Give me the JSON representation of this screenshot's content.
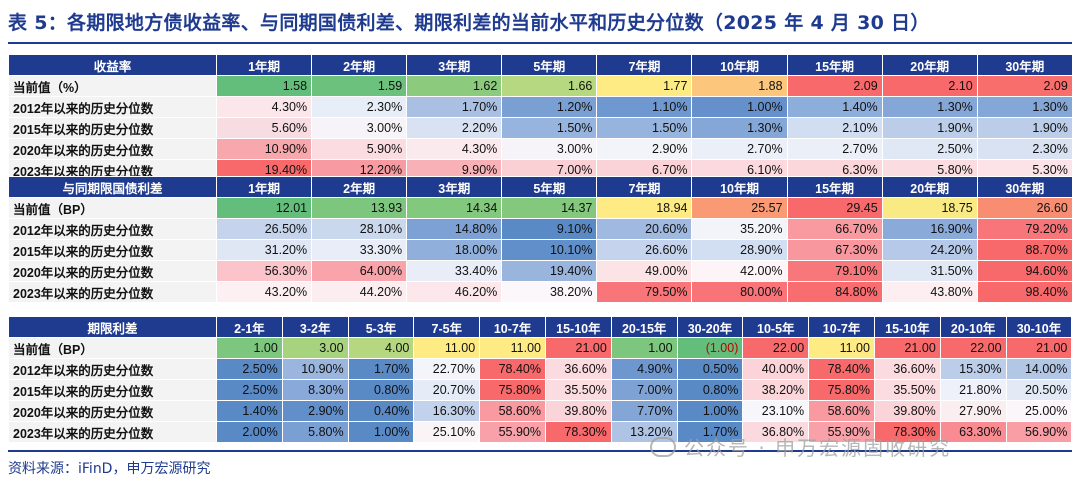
{
  "title": "表 5：各期限地方债收益率、与同期国债利差、期限利差的当前水平和历史分位数（2025 年 4 月 30 日）",
  "source": "资料来源：iFinD，申万宏源研究",
  "watermark": "公众号 · 申万宏源固收研究",
  "colors": {
    "header": "#1f3b8f",
    "label_bg": "#f3f3f3",
    "high": "#f8696b",
    "mid": "#ffeb84",
    "low": "#5a8ac6"
  },
  "table1": {
    "header": [
      "收益率",
      "1年期",
      "2年期",
      "3年期",
      "5年期",
      "7年期",
      "10年期",
      "15年期",
      "20年期",
      "30年期"
    ],
    "rows": [
      {
        "label": "当前值（%）",
        "cells": [
          {
            "t": "1.58",
            "bg": "#63be7b"
          },
          {
            "t": "1.59",
            "bg": "#6cc17c"
          },
          {
            "t": "1.62",
            "bg": "#8ccb7e"
          },
          {
            "t": "1.66",
            "bg": "#b6d880"
          },
          {
            "t": "1.77",
            "bg": "#ffeb84"
          },
          {
            "t": "1.88",
            "bg": "#fcc77d"
          },
          {
            "t": "2.09",
            "bg": "#f8696b"
          },
          {
            "t": "2.10",
            "bg": "#f8696b"
          },
          {
            "t": "2.09",
            "bg": "#f86e6c"
          }
        ]
      },
      {
        "label": "2012年以来的历史分位数",
        "cells": [
          {
            "t": "4.30%",
            "bg": "#fbe7ea"
          },
          {
            "t": "2.30%",
            "bg": "#e8eef8"
          },
          {
            "t": "1.70%",
            "bg": "#a9c0e3"
          },
          {
            "t": "1.20%",
            "bg": "#7a9fd3"
          },
          {
            "t": "1.10%",
            "bg": "#6f98d0"
          },
          {
            "t": "1.00%",
            "bg": "#6690cc"
          },
          {
            "t": "1.40%",
            "bg": "#8dadda"
          },
          {
            "t": "1.30%",
            "bg": "#84a7d7"
          },
          {
            "t": "1.30%",
            "bg": "#84a7d7"
          }
        ]
      },
      {
        "label": "2015年以来的历史分位数",
        "cells": [
          {
            "t": "5.60%",
            "bg": "#f7dde2"
          },
          {
            "t": "3.00%",
            "bg": "#f6f4f8"
          },
          {
            "t": "2.20%",
            "bg": "#d8e2f2"
          },
          {
            "t": "1.50%",
            "bg": "#96b4dd"
          },
          {
            "t": "1.50%",
            "bg": "#96b4dd"
          },
          {
            "t": "1.30%",
            "bg": "#84a7d7"
          },
          {
            "t": "2.10%",
            "bg": "#d1ddf0"
          },
          {
            "t": "1.90%",
            "bg": "#bccde9"
          },
          {
            "t": "1.90%",
            "bg": "#bccde9"
          }
        ]
      },
      {
        "label": "2020年以来的历史分位数",
        "cells": [
          {
            "t": "10.90%",
            "bg": "#f8a7ad"
          },
          {
            "t": "5.90%",
            "bg": "#fbdde1"
          },
          {
            "t": "4.30%",
            "bg": "#fbeaed"
          },
          {
            "t": "3.00%",
            "bg": "#f6f4f8"
          },
          {
            "t": "2.90%",
            "bg": "#f3f4f9"
          },
          {
            "t": "2.70%",
            "bg": "#ebeff8"
          },
          {
            "t": "2.70%",
            "bg": "#ebeff8"
          },
          {
            "t": "2.50%",
            "bg": "#e1e8f5"
          },
          {
            "t": "2.30%",
            "bg": "#d8e2f2"
          }
        ]
      },
      {
        "label": "2023年以来的历史分位数",
        "cells": [
          {
            "t": "19.40%",
            "bg": "#f8696b"
          },
          {
            "t": "12.20%",
            "bg": "#f89aa1"
          },
          {
            "t": "9.90%",
            "bg": "#f9b1b8"
          },
          {
            "t": "7.00%",
            "bg": "#fad0d5"
          },
          {
            "t": "6.70%",
            "bg": "#fad3d8"
          },
          {
            "t": "6.10%",
            "bg": "#fbd9de"
          },
          {
            "t": "6.30%",
            "bg": "#fbd7dc"
          },
          {
            "t": "5.80%",
            "bg": "#fbdde1"
          },
          {
            "t": "5.30%",
            "bg": "#fbe3e7"
          }
        ]
      }
    ]
  },
  "table2": {
    "header": [
      "与同期限国债利差",
      "1年期",
      "2年期",
      "3年期",
      "5年期",
      "7年期",
      "10年期",
      "15年期",
      "20年期",
      "30年期"
    ],
    "rows": [
      {
        "label": "当前值（BP）",
        "cells": [
          {
            "t": "12.01",
            "bg": "#63be7b"
          },
          {
            "t": "13.93",
            "bg": "#7cc67d"
          },
          {
            "t": "14.34",
            "bg": "#82c87d"
          },
          {
            "t": "14.37",
            "bg": "#83c87d"
          },
          {
            "t": "18.94",
            "bg": "#ffeb84"
          },
          {
            "t": "25.57",
            "bg": "#fa9a74"
          },
          {
            "t": "29.45",
            "bg": "#f8696b"
          },
          {
            "t": "18.75",
            "bg": "#f9ea84"
          },
          {
            "t": "26.60",
            "bg": "#f98d72"
          }
        ]
      },
      {
        "label": "2012年以来的历史分位数",
        "cells": [
          {
            "t": "26.50%",
            "bg": "#c5d4ec"
          },
          {
            "t": "28.10%",
            "bg": "#cad8ee"
          },
          {
            "t": "14.80%",
            "bg": "#7da1d4"
          },
          {
            "t": "9.10%",
            "bg": "#5a8ac6"
          },
          {
            "t": "20.60%",
            "bg": "#9fb9e0"
          },
          {
            "t": "35.20%",
            "bg": "#f2f4fa"
          },
          {
            "t": "66.70%",
            "bg": "#f99aa1"
          },
          {
            "t": "16.90%",
            "bg": "#8aaad9"
          },
          {
            "t": "79.20%",
            "bg": "#f8767a"
          }
        ]
      },
      {
        "label": "2015年以来的历史分位数",
        "cells": [
          {
            "t": "31.20%",
            "bg": "#dfe7f5"
          },
          {
            "t": "33.30%",
            "bg": "#e8edf8"
          },
          {
            "t": "18.00%",
            "bg": "#90afdb"
          },
          {
            "t": "10.10%",
            "bg": "#618fca"
          },
          {
            "t": "26.60%",
            "bg": "#c5d4ec"
          },
          {
            "t": "28.90%",
            "bg": "#d2def1"
          },
          {
            "t": "67.30%",
            "bg": "#f9979e"
          },
          {
            "t": "24.20%",
            "bg": "#b6c9e8"
          },
          {
            "t": "88.70%",
            "bg": "#f8696b"
          }
        ]
      },
      {
        "label": "2020年以来的历史分位数",
        "cells": [
          {
            "t": "56.30%",
            "bg": "#fbc4ca"
          },
          {
            "t": "64.00%",
            "bg": "#f9a3aa"
          },
          {
            "t": "33.40%",
            "bg": "#e8edf8"
          },
          {
            "t": "19.40%",
            "bg": "#99b5de"
          },
          {
            "t": "49.00%",
            "bg": "#fce3e6"
          },
          {
            "t": "42.00%",
            "bg": "#fcf4f6"
          },
          {
            "t": "79.10%",
            "bg": "#f8777b"
          },
          {
            "t": "31.50%",
            "bg": "#e0e8f5"
          },
          {
            "t": "94.60%",
            "bg": "#f8696b"
          }
        ]
      },
      {
        "label": "2023年以来的历史分位数",
        "cells": [
          {
            "t": "43.20%",
            "bg": "#fcf0f2"
          },
          {
            "t": "44.20%",
            "bg": "#fcedf0"
          },
          {
            "t": "46.20%",
            "bg": "#fce8eb"
          },
          {
            "t": "38.20%",
            "bg": "#fbf7fa"
          },
          {
            "t": "79.50%",
            "bg": "#f8767a"
          },
          {
            "t": "80.00%",
            "bg": "#f87479"
          },
          {
            "t": "84.80%",
            "bg": "#f86d70"
          },
          {
            "t": "43.80%",
            "bg": "#fceef1"
          },
          {
            "t": "98.40%",
            "bg": "#f8696b"
          }
        ]
      }
    ]
  },
  "table3": {
    "header": [
      "期限利差",
      "2-1年",
      "3-2年",
      "5-3年",
      "7-5年",
      "10-7年",
      "15-10年",
      "20-15年",
      "30-20年",
      "10-5年",
      "10-7年",
      "15-10年",
      "20-10年",
      "30-10年"
    ],
    "rows": [
      {
        "label": "当前值（BP）",
        "cells": [
          {
            "t": "1.00",
            "bg": "#7cc67d"
          },
          {
            "t": "3.00",
            "bg": "#a7d37f"
          },
          {
            "t": "4.00",
            "bg": "#b5d780"
          },
          {
            "t": "11.00",
            "bg": "#ffeb84"
          },
          {
            "t": "11.00",
            "bg": "#ffeb84"
          },
          {
            "t": "21.00",
            "bg": "#f8696b"
          },
          {
            "t": "1.00",
            "bg": "#7cc67d"
          },
          {
            "t": "(1.00)",
            "bg": "#63be7b",
            "red": true
          },
          {
            "t": "22.00",
            "bg": "#f8696b"
          },
          {
            "t": "11.00",
            "bg": "#ffeb84"
          },
          {
            "t": "21.00",
            "bg": "#f8696b"
          },
          {
            "t": "22.00",
            "bg": "#f8696b"
          },
          {
            "t": "21.00",
            "bg": "#f8696b"
          }
        ]
      },
      {
        "label": "2012年以来的历史分位数",
        "cells": [
          {
            "t": "2.50%",
            "bg": "#5a8ac6"
          },
          {
            "t": "10.90%",
            "bg": "#9bb6de"
          },
          {
            "t": "1.70%",
            "bg": "#5a8ac6"
          },
          {
            "t": "22.70%",
            "bg": "#f4f5fa"
          },
          {
            "t": "78.40%",
            "bg": "#f8696b"
          },
          {
            "t": "36.60%",
            "bg": "#fbdbe0"
          },
          {
            "t": "4.90%",
            "bg": "#6e97cf"
          },
          {
            "t": "0.50%",
            "bg": "#5a8ac6"
          },
          {
            "t": "40.00%",
            "bg": "#fbd3d8"
          },
          {
            "t": "78.40%",
            "bg": "#f8696b"
          },
          {
            "t": "36.60%",
            "bg": "#fbdbe0"
          },
          {
            "t": "15.30%",
            "bg": "#bccde9"
          },
          {
            "t": "14.00%",
            "bg": "#b2c6e6"
          }
        ]
      },
      {
        "label": "2015年以来的历史分位数",
        "cells": [
          {
            "t": "2.50%",
            "bg": "#5a8ac6"
          },
          {
            "t": "8.30%",
            "bg": "#88a9d9"
          },
          {
            "t": "0.80%",
            "bg": "#5a8ac6"
          },
          {
            "t": "20.70%",
            "bg": "#e5ebf7"
          },
          {
            "t": "75.80%",
            "bg": "#f8696b"
          },
          {
            "t": "35.50%",
            "bg": "#fbdde1"
          },
          {
            "t": "7.00%",
            "bg": "#7ea2d4"
          },
          {
            "t": "0.80%",
            "bg": "#5a8ac6"
          },
          {
            "t": "38.20%",
            "bg": "#fbd7dc"
          },
          {
            "t": "75.80%",
            "bg": "#f8696b"
          },
          {
            "t": "35.50%",
            "bg": "#fbdde1"
          },
          {
            "t": "21.80%",
            "bg": "#eef1f9"
          },
          {
            "t": "20.50%",
            "bg": "#e3eaf6"
          }
        ]
      },
      {
        "label": "2020年以来的历史分位数",
        "cells": [
          {
            "t": "1.40%",
            "bg": "#5a8ac6"
          },
          {
            "t": "2.90%",
            "bg": "#628fca"
          },
          {
            "t": "0.40%",
            "bg": "#5a8ac6"
          },
          {
            "t": "16.30%",
            "bg": "#c3d2ec"
          },
          {
            "t": "58.60%",
            "bg": "#f99aa1"
          },
          {
            "t": "39.80%",
            "bg": "#fbd4d9"
          },
          {
            "t": "7.70%",
            "bg": "#84a6d7"
          },
          {
            "t": "1.00%",
            "bg": "#5a8ac6"
          },
          {
            "t": "23.10%",
            "bg": "#f7f7fb"
          },
          {
            "t": "58.60%",
            "bg": "#f99aa1"
          },
          {
            "t": "39.80%",
            "bg": "#fbd4d9"
          },
          {
            "t": "27.90%",
            "bg": "#fbeef1"
          },
          {
            "t": "25.00%",
            "bg": "#fbf6f9"
          }
        ]
      },
      {
        "label": "2023年以来的历史分位数",
        "cells": [
          {
            "t": "2.00%",
            "bg": "#5a8ac6"
          },
          {
            "t": "5.80%",
            "bg": "#7aa0d3"
          },
          {
            "t": "1.00%",
            "bg": "#5a8ac6"
          },
          {
            "t": "25.10%",
            "bg": "#fbf4f7"
          },
          {
            "t": "55.90%",
            "bg": "#f9a1a8"
          },
          {
            "t": "78.30%",
            "bg": "#f8696b"
          },
          {
            "t": "13.20%",
            "bg": "#afc4e5"
          },
          {
            "t": "1.70%",
            "bg": "#5a8ac6"
          },
          {
            "t": "36.80%",
            "bg": "#fbdadf"
          },
          {
            "t": "55.90%",
            "bg": "#f9a1a8"
          },
          {
            "t": "78.30%",
            "bg": "#f8696b"
          },
          {
            "t": "63.30%",
            "bg": "#f98c93"
          },
          {
            "t": "56.90%",
            "bg": "#f99ea5"
          }
        ]
      }
    ]
  }
}
